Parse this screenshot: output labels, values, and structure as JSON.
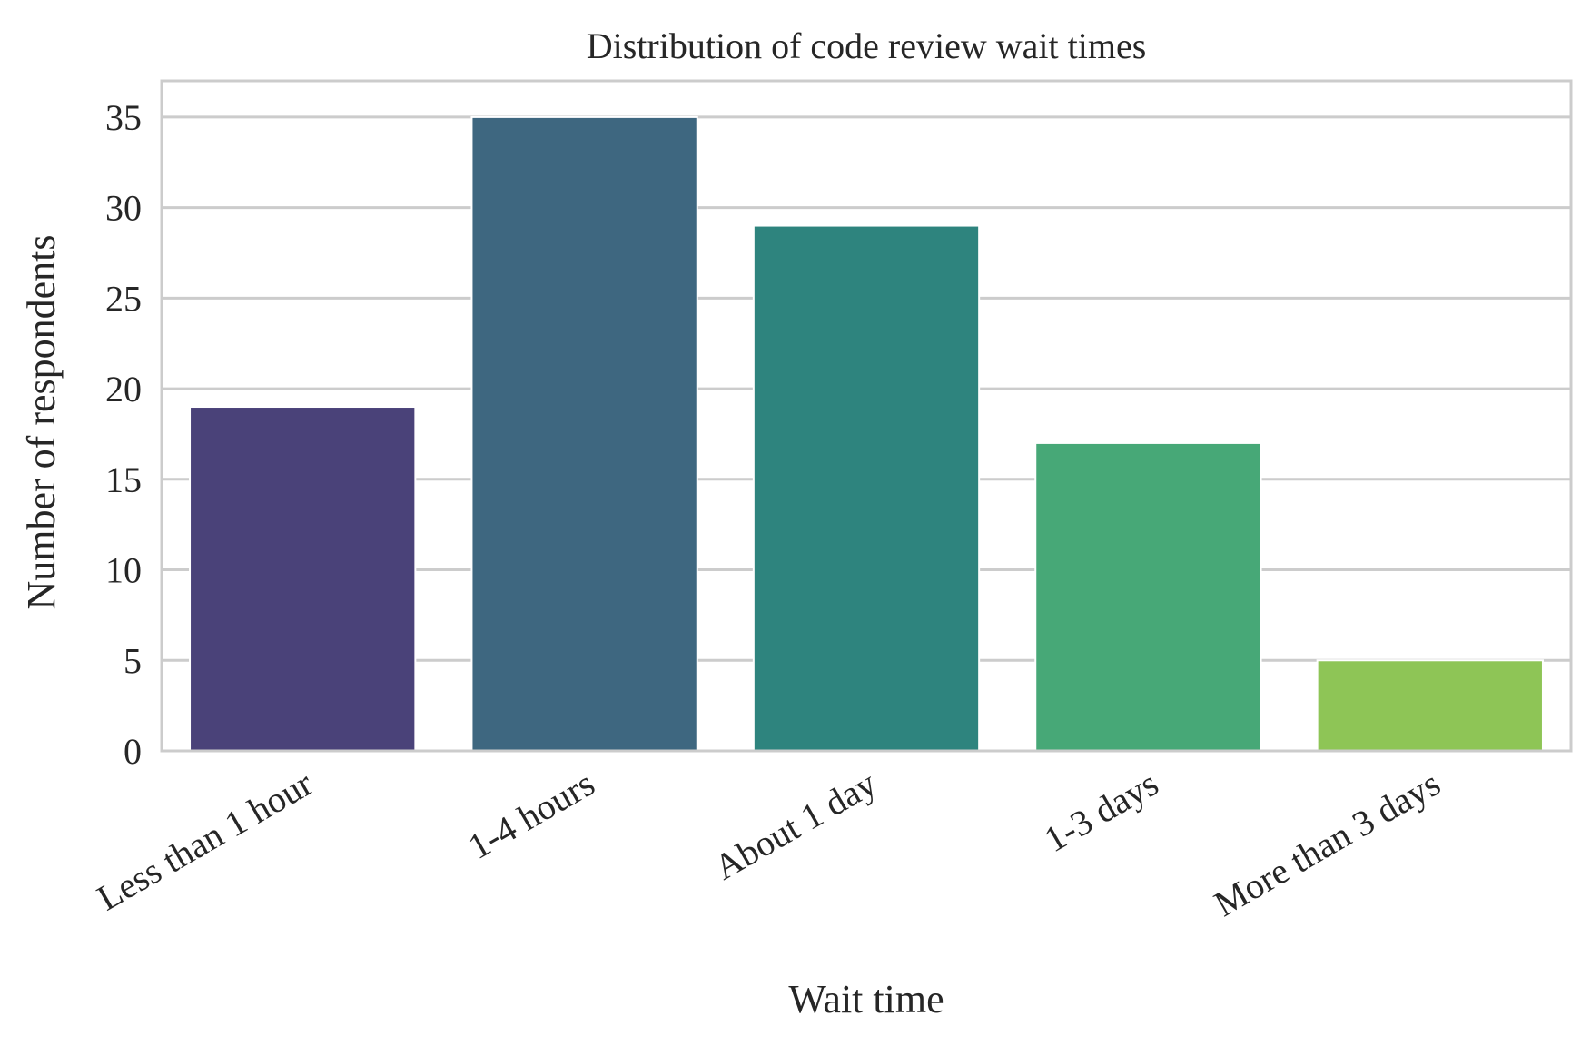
{
  "chart_data": {
    "type": "bar",
    "title": "Distribution of code review wait times",
    "xlabel": "Wait time",
    "ylabel": "Number of respondents",
    "categories": [
      "Less than 1 hour",
      "1-4 hours",
      "About 1 day",
      "1-3 days",
      "More than 3 days"
    ],
    "values": [
      19,
      35,
      29,
      17,
      5
    ],
    "colors": [
      "#4a4279",
      "#3e6780",
      "#2e847e",
      "#47a877",
      "#8ec556"
    ],
    "ylim": [
      0,
      37
    ],
    "yticks": [
      0,
      5,
      10,
      15,
      20,
      25,
      30,
      35
    ],
    "grid": true
  }
}
